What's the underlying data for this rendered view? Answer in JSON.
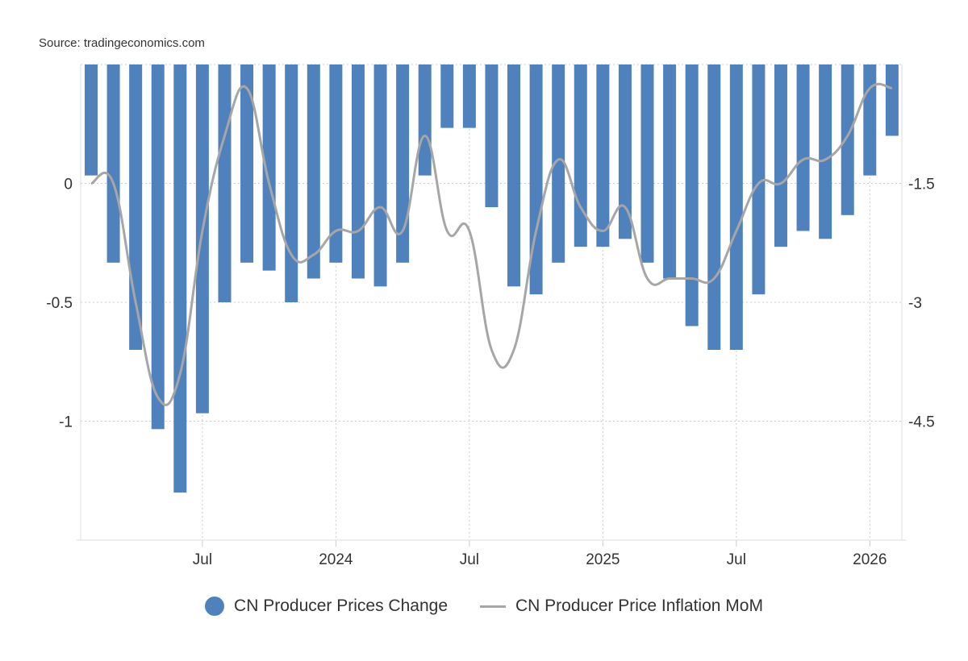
{
  "source": "Source: tradingeconomics.com",
  "chart_data": {
    "type": "bar+line",
    "x": [
      "2023-02",
      "2023-03",
      "2023-04",
      "2023-05",
      "2023-06",
      "2023-07",
      "2023-08",
      "2023-09",
      "2023-10",
      "2023-11",
      "2023-12",
      "2024-01",
      "2024-02",
      "2024-03",
      "2024-04",
      "2024-05",
      "2024-06",
      "2024-07",
      "2024-08",
      "2024-09",
      "2024-10",
      "2024-11",
      "2024-12",
      "2025-01",
      "2025-02",
      "2025-03",
      "2025-04",
      "2025-05",
      "2025-06",
      "2025-07",
      "2025-08",
      "2025-09",
      "2025-10",
      "2025-11",
      "2025-12",
      "2026-01",
      "2026-02"
    ],
    "x_tick_labels": [
      {
        "x": "2023-07",
        "label": "Jul"
      },
      {
        "x": "2024-01",
        "label": "2024"
      },
      {
        "x": "2024-07",
        "label": "Jul"
      },
      {
        "x": "2025-01",
        "label": "2025"
      },
      {
        "x": "2025-07",
        "label": "Jul"
      },
      {
        "x": "2026-01",
        "label": "2026"
      }
    ],
    "left_axis": {
      "range": [
        -1.5,
        0.5
      ],
      "ticks": [
        {
          "v": 0,
          "label": "0"
        },
        {
          "v": -0.5,
          "label": "-0.5"
        },
        {
          "v": -1,
          "label": "-1"
        }
      ]
    },
    "right_axis": {
      "range": [
        -6,
        0
      ],
      "ticks": [
        {
          "v": -1.5,
          "label": "-1.5"
        },
        {
          "v": -3,
          "label": "-3"
        },
        {
          "v": -4.5,
          "label": "-4.5"
        }
      ]
    },
    "grid": true,
    "legend_position": "bottom",
    "series": [
      {
        "name": "CN Producer Prices Change",
        "type": "bar",
        "axis": "right",
        "color": "#4f81bd",
        "values": [
          -1.4,
          -2.5,
          -3.6,
          -4.6,
          -5.4,
          -4.4,
          -3.0,
          -2.5,
          -2.6,
          -3.0,
          -2.7,
          -2.5,
          -2.7,
          -2.8,
          -2.5,
          -1.4,
          -0.8,
          -0.8,
          -1.8,
          -2.8,
          -2.9,
          -2.5,
          -2.3,
          -2.3,
          -2.2,
          -2.5,
          -2.7,
          -3.3,
          -3.6,
          -3.6,
          -2.9,
          -2.3,
          -2.1,
          -2.2,
          -1.9,
          -1.4,
          -0.9
        ]
      },
      {
        "name": "CN Producer Price Inflation MoM",
        "type": "line",
        "axis": "left",
        "color": "#a6a6a6",
        "values": [
          0.0,
          0.0,
          -0.5,
          -0.9,
          -0.8,
          -0.2,
          0.2,
          0.4,
          0.0,
          -0.3,
          -0.3,
          -0.2,
          -0.2,
          -0.1,
          -0.2,
          0.2,
          -0.2,
          -0.2,
          -0.7,
          -0.7,
          -0.2,
          0.1,
          -0.1,
          -0.2,
          -0.1,
          -0.4,
          -0.4,
          -0.4,
          -0.4,
          -0.2,
          0.0,
          0.0,
          0.1,
          0.1,
          0.2,
          0.4,
          0.4
        ]
      }
    ]
  }
}
